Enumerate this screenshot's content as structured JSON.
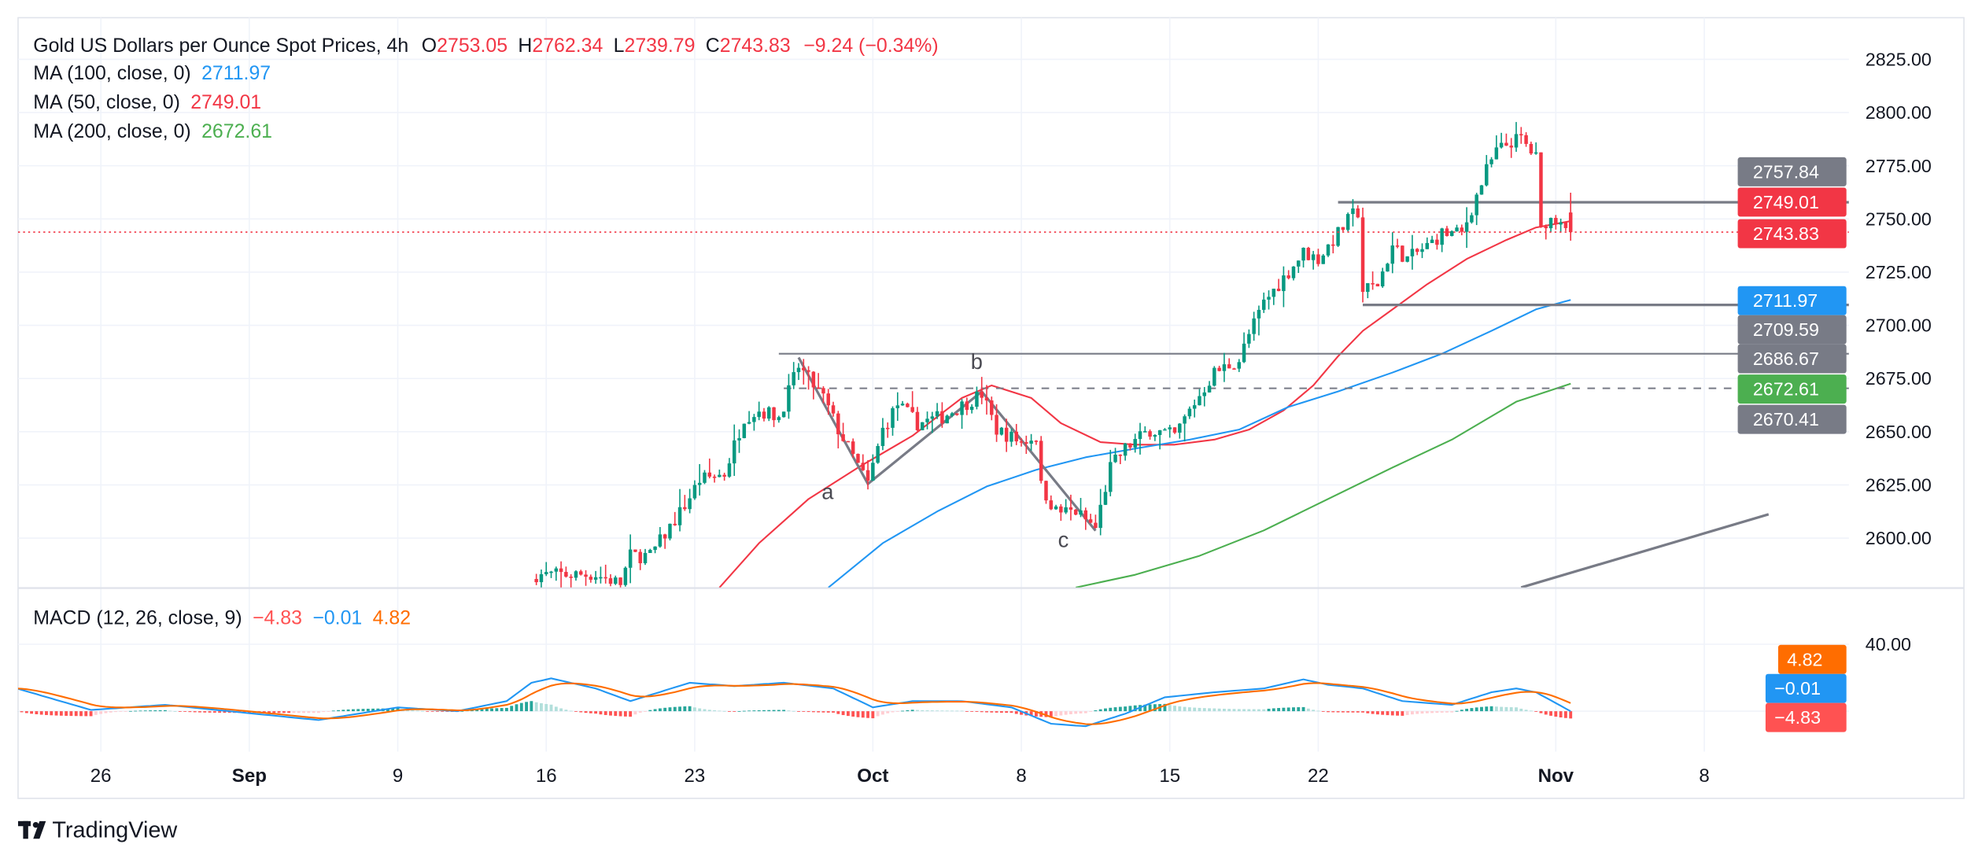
{
  "header": {
    "symbol_title": "Gold US Dollars per Ounce Spot Prices, 4h",
    "open_label": "O",
    "open": "2753.05",
    "high_label": "H",
    "high": "2762.34",
    "low_label": "L",
    "low": "2739.79",
    "close_label": "C",
    "close": "2743.83",
    "change": "−9.24 (−0.34%)"
  },
  "indicators": [
    {
      "label": "MA (100, close, 0)",
      "value": "2711.97",
      "color": "#2196F3"
    },
    {
      "label": "MA (50, close, 0)",
      "value": "2749.01",
      "color": "#F23645"
    },
    {
      "label": "MA (200, close, 0)",
      "value": "2672.61",
      "color": "#4CAF50"
    }
  ],
  "macd_legend": {
    "label": "MACD (12, 26, close, 9)",
    "histogram": "−4.83",
    "macd": "−0.01",
    "signal": "4.82"
  },
  "price_axis": [
    "2600.00",
    "2625.00",
    "2650.00",
    "2675.00",
    "2700.00",
    "2725.00",
    "2750.00",
    "2775.00",
    "2800.00",
    "2825.00"
  ],
  "price_badges": [
    {
      "value": "2757.84",
      "color": "#787B86"
    },
    {
      "value": "2749.01",
      "color": "#F23645"
    },
    {
      "value": "2743.83",
      "color": "#F23645"
    },
    {
      "value": "2711.97",
      "color": "#2196F3"
    },
    {
      "value": "2709.59",
      "color": "#787B86"
    },
    {
      "value": "2686.67",
      "color": "#787B86"
    },
    {
      "value": "2672.61",
      "color": "#4CAF50"
    },
    {
      "value": "2670.41",
      "color": "#787B86"
    }
  ],
  "macd_axis": {
    "tick": "40.00"
  },
  "macd_badges": [
    {
      "value": "4.82",
      "color": "#FF6D00"
    },
    {
      "value": "−0.01",
      "color": "#2196F3"
    },
    {
      "value": "−4.83",
      "color": "#FF5252"
    }
  ],
  "time_axis": [
    {
      "label": "26",
      "date": "08-26",
      "bold": false
    },
    {
      "label": "Sep",
      "date": "09-02",
      "bold": true
    },
    {
      "label": "9",
      "date": "09-09",
      "bold": false
    },
    {
      "label": "16",
      "date": "09-16",
      "bold": false
    },
    {
      "label": "23",
      "date": "09-23",
      "bold": false
    },
    {
      "label": "Oct",
      "date": "10-01",
      "bold": true
    },
    {
      "label": "8",
      "date": "10-08",
      "bold": false
    },
    {
      "label": "15",
      "date": "10-15",
      "bold": false
    },
    {
      "label": "22",
      "date": "10-22",
      "bold": false
    },
    {
      "label": "Nov",
      "date": "11-01",
      "bold": true
    },
    {
      "label": "8",
      "date": "11-08",
      "bold": false
    }
  ],
  "wave_labels": {
    "a": "a",
    "b": "b",
    "c": "c"
  },
  "brand": {
    "name": "TradingView"
  },
  "colors": {
    "up": "#089981",
    "down": "#F23645",
    "ma100": "#2196F3",
    "ma50": "#F23645",
    "ma200": "#4CAF50",
    "macd": "#2196F3",
    "signal": "#FF6D00",
    "drawing": "#787B86"
  },
  "chart_data": [
    {
      "type": "candlestick",
      "title": "Gold US Dollars per Ounce Spot Prices, 4h",
      "ylim": [
        2576,
        2838
      ],
      "y_ticks_step": 25,
      "grid": true,
      "last_bar": {
        "open": 2753.05,
        "high": 2762.34,
        "low": 2739.79,
        "close": 2743.83
      },
      "close_path": [
        [
          "09-13 16",
          2582.8
        ],
        [
          "09-17 16",
          2582.8
        ],
        [
          "09-18 12",
          2578.6
        ],
        [
          "09-18 20",
          2591.7
        ],
        [
          "09-19 12",
          2591.7
        ],
        [
          "09-20 16",
          2615.4
        ],
        [
          "09-23 04",
          2627.3
        ],
        [
          "09-24 00",
          2630.3
        ],
        [
          "09-24 16",
          2657.0
        ],
        [
          "09-25 04",
          2660.0
        ],
        [
          "09-25 20",
          2657.0
        ],
        [
          "09-26 12",
          2680.7
        ],
        [
          "09-27 08",
          2665.9
        ],
        [
          "09-27 20",
          2651.0
        ],
        [
          "09-30 20",
          2625.5
        ],
        [
          "10-01 08",
          2651.0
        ],
        [
          "10-01 20",
          2662.9
        ],
        [
          "10-02 12",
          2654.0
        ],
        [
          "10-03 08",
          2657.0
        ],
        [
          "10-04 16",
          2667.7
        ],
        [
          "10-07 04",
          2651.0
        ],
        [
          "10-08 00",
          2645.1
        ],
        [
          "10-08 12",
          2648.1
        ],
        [
          "10-08 16",
          2624.3
        ],
        [
          "10-09 04",
          2612.5
        ],
        [
          "10-09 20",
          2612.5
        ],
        [
          "10-10 12",
          2604.7
        ],
        [
          "10-11 00",
          2633.2
        ],
        [
          "10-11 12",
          2642.1
        ],
        [
          "10-14 08",
          2651.0
        ],
        [
          "10-15 04",
          2648.1
        ],
        [
          "10-15 16",
          2660.0
        ],
        [
          "10-16 12",
          2677.8
        ],
        [
          "10-17 08",
          2683.7
        ],
        [
          "10-17 16",
          2695.6
        ],
        [
          "10-18 04",
          2710.6
        ],
        [
          "10-18 20",
          2722.3
        ],
        [
          "10-21 12",
          2734.2
        ],
        [
          "10-22 00",
          2731.2
        ],
        [
          "10-22 16",
          2743.1
        ],
        [
          "10-23 04",
          2752.0
        ],
        [
          "10-23 08",
          2753.2
        ],
        [
          "10-23 12",
          2716.4
        ],
        [
          "10-24 00",
          2719.3
        ],
        [
          "10-24 12",
          2737.1
        ],
        [
          "10-25 00",
          2731.2
        ],
        [
          "10-25 16",
          2737.1
        ],
        [
          "10-28 04",
          2743.1
        ],
        [
          "10-28 20",
          2743.1
        ],
        [
          "10-29 04",
          2754.9
        ],
        [
          "10-29 16",
          2772.8
        ],
        [
          "10-30 00",
          2781.7
        ],
        [
          "10-30 12",
          2786.4
        ],
        [
          "10-30 20",
          2787.6
        ],
        [
          "10-31 08",
          2778.7
        ],
        [
          "10-31 12",
          2744.3
        ],
        [
          "10-31 16",
          2749.0
        ],
        [
          "11-01 04",
          2750.8
        ],
        [
          "11-01 12",
          2743.83
        ]
      ],
      "series": [
        {
          "name": "MA (50, close, 0)",
          "points": [
            [
              "09-23 20",
              2576.8
            ],
            [
              "09-25 04",
              2597.6
            ],
            [
              "09-26 20",
              2618.4
            ],
            [
              "09-30 12",
              2633.2
            ],
            [
              "10-02 08",
              2648.1
            ],
            [
              "10-04 00",
              2665.9
            ],
            [
              "10-07 00",
              2671.8
            ],
            [
              "10-08 08",
              2665.9
            ],
            [
              "10-09 08",
              2654.0
            ],
            [
              "10-10 16",
              2645.1
            ],
            [
              "10-11 20",
              2643.9
            ],
            [
              "10-15 04",
              2643.9
            ],
            [
              "10-16 12",
              2646.3
            ],
            [
              "10-17 16",
              2651.0
            ],
            [
              "10-18 20",
              2660.0
            ],
            [
              "10-21 20",
              2671.8
            ],
            [
              "10-22 16",
              2685.5
            ],
            [
              "10-23 12",
              2697.4
            ],
            [
              "10-24 12",
              2707.5
            ],
            [
              "10-25 16",
              2719.3
            ],
            [
              "10-29 00",
              2731.2
            ],
            [
              "10-30 08",
              2740.1
            ],
            [
              "10-31 08",
              2746.0
            ],
            [
              "11-01 12",
              2749.01
            ]
          ]
        },
        {
          "name": "MA (100, close, 0)",
          "points": [
            [
              "09-27 12",
              2576.8
            ],
            [
              "10-01 08",
              2597.6
            ],
            [
              "10-03 04",
              2612.5
            ],
            [
              "10-04 20",
              2624.3
            ],
            [
              "10-08 12",
              2632.1
            ],
            [
              "10-10 04",
              2638.0
            ],
            [
              "10-11 20",
              2642.1
            ],
            [
              "10-15 16",
              2646.3
            ],
            [
              "10-17 08",
              2651.0
            ],
            [
              "10-21 00",
              2661.7
            ],
            [
              "10-22 16",
              2668.9
            ],
            [
              "10-24 12",
              2677.8
            ],
            [
              "10-28 04",
              2686.7
            ],
            [
              "10-29 20",
              2697.4
            ],
            [
              "10-31 08",
              2707.5
            ],
            [
              "11-01 12",
              2711.97
            ]
          ]
        },
        {
          "name": "MA (200, close, 0)",
          "points": [
            [
              "10-09 20",
              2576.8
            ],
            [
              "10-11 20",
              2582.8
            ],
            [
              "10-16 00",
              2591.7
            ],
            [
              "10-18 04",
              2603.6
            ],
            [
              "10-22 08",
              2618.4
            ],
            [
              "10-24 12",
              2633.2
            ],
            [
              "10-28 12",
              2646.3
            ],
            [
              "10-30 16",
              2664.1
            ],
            [
              "11-01 12",
              2672.61
            ]
          ]
        }
      ],
      "drawings": {
        "horizontal_lines": [
          {
            "price": 2757.84,
            "from": "10-22 16"
          },
          {
            "price": 2709.59,
            "from": "10-23 12"
          },
          {
            "price": 2686.67,
            "from": "09-25 20"
          },
          {
            "price": 2670.41,
            "from": "09-26 00",
            "dashed": true
          }
        ],
        "trend_line": [
          [
            "10-30 20",
            2576.8
          ],
          [
            "11-12 04",
            2611.2
          ]
        ],
        "abc_zigzag": [
          [
            "09-26 12",
            2684.9
          ],
          [
            "09-30 20",
            2625.5
          ],
          [
            "10-04 16",
            2668.9
          ],
          [
            "10-10 12",
            2603.5
          ]
        ]
      }
    },
    {
      "type": "macd",
      "title": "MACD (12, 26, close, 9)",
      "macd_line": [
        [
          "08-21 04",
          13.6
        ],
        [
          "08-23 16",
          0.75
        ],
        [
          "08-28 04",
          3.8
        ],
        [
          "09-02 04",
          -1.5
        ],
        [
          "09-04 08",
          -5.3
        ],
        [
          "09-09 00",
          2.3
        ],
        [
          "09-11 00",
          0
        ],
        [
          "09-12 16",
          6
        ],
        [
          "09-13 12",
          17
        ],
        [
          "09-16 04",
          19.6
        ],
        [
          "09-17 16",
          13.6
        ],
        [
          "09-18 20",
          6
        ],
        [
          "09-20 20",
          17
        ],
        [
          "09-24 08",
          15
        ],
        [
          "09-26 00",
          17
        ],
        [
          "09-27 16",
          13.6
        ],
        [
          "10-01 00",
          2.3
        ],
        [
          "10-02 08",
          6
        ],
        [
          "10-04 00",
          6
        ],
        [
          "10-07 16",
          2.3
        ],
        [
          "10-09 00",
          -7.5
        ],
        [
          "10-10 04",
          -9
        ],
        [
          "10-11 12",
          -1.5
        ],
        [
          "10-14 20",
          8.3
        ],
        [
          "10-16 12",
          11.3
        ],
        [
          "10-18 04",
          13.6
        ],
        [
          "10-21 12",
          19
        ],
        [
          "10-22 08",
          15.8
        ],
        [
          "10-23 12",
          13.6
        ],
        [
          "10-24 20",
          6
        ],
        [
          "10-28 12",
          3.8
        ],
        [
          "10-29 20",
          11.3
        ],
        [
          "10-30 16",
          13.6
        ],
        [
          "10-31 08",
          11.3
        ],
        [
          "11-01 12",
          -0.01
        ]
      ],
      "last": {
        "macd": -0.01,
        "signal": 4.82,
        "histogram": -4.83
      }
    }
  ]
}
